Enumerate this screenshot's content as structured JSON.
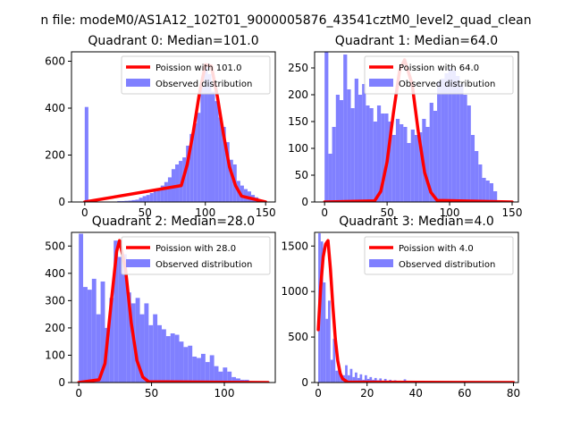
{
  "figure": {
    "suptitle": "n file: modeM0/AS1A12_102T01_9000005876_43541cztM0_level2_quad_clean"
  },
  "colors": {
    "poisson": "#ff0000",
    "observed": "#8080ff"
  },
  "chart_data": [
    {
      "type": "bar",
      "title": "Quadrant 0: Median=101.0",
      "xlim": [
        -11,
        158
      ],
      "ylim": [
        0,
        640
      ],
      "xticks": [
        0,
        50,
        100,
        150
      ],
      "yticks": [
        0,
        200,
        400,
        600
      ],
      "legend_placement": "top-right",
      "series": [
        {
          "kind": "histogram",
          "name": "Observed distribution",
          "bin_width": 3,
          "bins_x": [
            0,
            3,
            6,
            9,
            12,
            15,
            18,
            21,
            24,
            27,
            30,
            33,
            36,
            39,
            42,
            45,
            48,
            51,
            54,
            57,
            60,
            63,
            66,
            69,
            72,
            75,
            78,
            81,
            84,
            87,
            90,
            93,
            96,
            99,
            102,
            105,
            108,
            111,
            114,
            117,
            120,
            123,
            126,
            129,
            132,
            135,
            138,
            141,
            144,
            147
          ],
          "values": [
            405,
            0,
            0,
            2,
            2,
            2,
            2,
            2,
            2,
            4,
            4,
            5,
            6,
            8,
            10,
            18,
            25,
            30,
            38,
            45,
            55,
            70,
            85,
            105,
            140,
            160,
            175,
            190,
            240,
            290,
            335,
            380,
            490,
            580,
            545,
            470,
            430,
            360,
            320,
            255,
            180,
            160,
            90,
            70,
            55,
            45,
            30,
            20,
            10,
            5
          ]
        },
        {
          "kind": "line",
          "name": "Poission with 101.0",
          "x": [
            0,
            80,
            85,
            90,
            95,
            100,
            105,
            110,
            115,
            120,
            125,
            130,
            150
          ],
          "y": [
            0,
            70,
            160,
            300,
            460,
            585,
            580,
            450,
            290,
            150,
            70,
            25,
            0
          ]
        }
      ]
    },
    {
      "type": "bar",
      "title": "Quadrant 1: Median=64.0",
      "xlim": [
        -8,
        155
      ],
      "ylim": [
        0,
        280
      ],
      "xticks": [
        0,
        50,
        100,
        150
      ],
      "yticks": [
        0,
        50,
        100,
        150,
        200,
        250
      ],
      "legend_placement": "top-right",
      "series": [
        {
          "kind": "histogram",
          "name": "Observed distribution",
          "bin_width": 3,
          "bins_x": [
            0,
            3,
            6,
            9,
            12,
            15,
            18,
            21,
            24,
            27,
            30,
            33,
            36,
            39,
            42,
            45,
            48,
            51,
            54,
            57,
            60,
            63,
            66,
            69,
            72,
            75,
            78,
            81,
            84,
            87,
            90,
            93,
            96,
            99,
            102,
            105,
            108,
            111,
            114,
            117,
            120,
            123,
            126,
            129,
            132,
            135
          ],
          "values": [
            280,
            90,
            140,
            200,
            190,
            275,
            210,
            175,
            230,
            200,
            220,
            180,
            175,
            150,
            180,
            165,
            165,
            150,
            125,
            155,
            145,
            140,
            110,
            135,
            125,
            130,
            155,
            140,
            185,
            170,
            225,
            230,
            240,
            250,
            245,
            235,
            220,
            200,
            180,
            125,
            95,
            70,
            45,
            40,
            35,
            20
          ]
        },
        {
          "kind": "line",
          "name": "Poission with 64.0",
          "x": [
            0,
            40,
            45,
            50,
            55,
            60,
            64,
            70,
            75,
            80,
            85,
            90,
            150
          ],
          "y": [
            0,
            2,
            20,
            75,
            165,
            245,
            265,
            220,
            130,
            55,
            18,
            3,
            0
          ]
        }
      ]
    },
    {
      "type": "bar",
      "title": "Quadrant 2: Median=28.0",
      "xlim": [
        -5,
        135
      ],
      "ylim": [
        0,
        550
      ],
      "xticks": [
        0,
        50,
        100
      ],
      "yticks": [
        0,
        100,
        200,
        300,
        400,
        500
      ],
      "legend_placement": "top-right",
      "series": [
        {
          "kind": "histogram",
          "name": "Observed distribution",
          "bin_width": 3,
          "bins_x": [
            0,
            3,
            6,
            9,
            12,
            15,
            18,
            21,
            24,
            27,
            30,
            33,
            36,
            39,
            42,
            45,
            48,
            51,
            54,
            57,
            60,
            63,
            66,
            69,
            72,
            75,
            78,
            81,
            84,
            87,
            90,
            93,
            96,
            99,
            102,
            105,
            108,
            111,
            114,
            117,
            120
          ],
          "values": [
            545,
            350,
            340,
            380,
            250,
            370,
            200,
            310,
            520,
            460,
            470,
            330,
            290,
            310,
            250,
            290,
            210,
            250,
            210,
            195,
            170,
            180,
            175,
            150,
            130,
            135,
            95,
            90,
            105,
            75,
            100,
            60,
            40,
            55,
            40,
            20,
            15,
            10,
            10,
            5,
            3
          ]
        },
        {
          "kind": "line",
          "name": "Poission with 28.0",
          "x": [
            0,
            14,
            18,
            22,
            26,
            28,
            32,
            36,
            40,
            44,
            48,
            130
          ],
          "y": [
            0,
            10,
            70,
            280,
            480,
            520,
            420,
            220,
            80,
            20,
            3,
            0
          ]
        }
      ]
    },
    {
      "type": "bar",
      "title": "Quadrant 3: Median=4.0",
      "xlim": [
        -1.5,
        82
      ],
      "ylim": [
        0,
        1650
      ],
      "xticks": [
        0,
        20,
        40,
        60,
        80
      ],
      "yticks": [
        0,
        500,
        1000,
        1500
      ],
      "legend_placement": "top-right",
      "series": [
        {
          "kind": "histogram",
          "name": "Observed distribution",
          "bin_width": 1,
          "bins_x": [
            0,
            1,
            2,
            3,
            4,
            5,
            6,
            7,
            8,
            9,
            10,
            11,
            12,
            13,
            14,
            15,
            16,
            17,
            18,
            19,
            20,
            21,
            22,
            23,
            24,
            25,
            26,
            27,
            28,
            29,
            30,
            31,
            32,
            33,
            34,
            35,
            36,
            37,
            38,
            39
          ],
          "values": [
            1640,
            1550,
            1100,
            700,
            900,
            250,
            480,
            130,
            180,
            70,
            80,
            190,
            80,
            150,
            60,
            110,
            50,
            90,
            30,
            80,
            40,
            60,
            30,
            50,
            25,
            45,
            20,
            40,
            15,
            30,
            10,
            25,
            10,
            20,
            10,
            35,
            5,
            15,
            5,
            10
          ]
        },
        {
          "kind": "line",
          "name": "Poission with 4.0",
          "x": [
            0,
            1,
            2,
            3,
            4,
            5,
            6,
            7,
            8,
            9,
            10,
            12,
            80
          ],
          "y": [
            580,
            1050,
            1380,
            1520,
            1560,
            1250,
            830,
            480,
            240,
            100,
            40,
            5,
            0
          ]
        }
      ]
    }
  ]
}
